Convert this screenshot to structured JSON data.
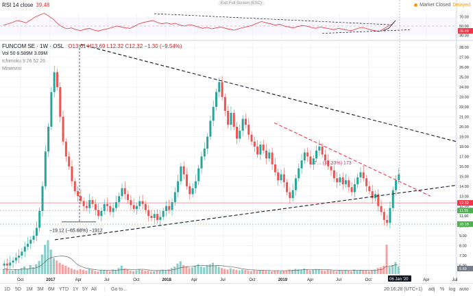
{
  "header": {
    "rsi_label": "RSI 14 close",
    "rsi_value": "39.48",
    "exit_fullscreen": "Exit Full Screen (ESC)",
    "market_status": "Market Closed",
    "delayed": "Delayed"
  },
  "legend": {
    "symbol": "FUNCOM SE · 1W · OSL",
    "ohlc": "O13.61 H13.69 L12.32 C12.32 −1.30 (−9.54%)",
    "vol": "Vol 50  6.589M 3.09M",
    "ichimoku": "Ichimoku 9 26 52 26",
    "minervini": "Minervini"
  },
  "annotations": {
    "drop_label": "−19.12 (−65.68%) −1912",
    "rise_label": "1.7… (32.33%) 173",
    "date_badge": "06 Jan '20"
  },
  "bottombar": {
    "timeframes": [
      "1D",
      "5D",
      "1M",
      "3M",
      "6M",
      "YTD",
      "1Y",
      "5Y",
      "All"
    ],
    "goto": "Go to...",
    "clock": "20:16:28 (UTC+1)",
    "options": [
      "%",
      "log",
      "auto"
    ],
    "adj": "adj"
  },
  "chart_data": [
    {
      "type": "line",
      "title": "RSI 14 close",
      "ylim": [
        20,
        80
      ],
      "x_ticks": [
        "Oct",
        "2017",
        "Apr",
        "Jul",
        "Oct",
        "2018",
        "Apr",
        "Jul",
        "Oct",
        "2019",
        "Apr",
        "Jul",
        "Oct",
        "2020",
        "Apr",
        "Jul"
      ],
      "series": [
        {
          "name": "RSI 14 close",
          "color": "#e53935",
          "values": [
            52,
            55,
            58,
            62,
            60,
            57,
            63,
            70,
            74,
            78,
            72,
            65,
            55,
            48,
            44,
            46,
            42,
            40,
            43,
            45,
            41,
            39,
            42,
            44,
            47,
            50,
            48,
            46,
            45,
            50,
            55,
            58,
            60,
            62,
            58,
            55,
            57,
            54,
            56,
            52,
            50,
            53,
            51,
            48,
            45,
            47,
            44,
            46,
            48,
            45,
            43,
            41,
            44,
            47,
            49,
            52,
            56,
            60,
            57,
            55,
            52,
            54,
            50,
            48,
            46,
            49,
            51,
            50,
            47,
            45,
            48,
            46,
            44,
            42,
            45,
            43,
            41,
            40,
            44,
            47,
            45,
            42,
            40,
            38,
            44,
            50,
            55
          ]
        }
      ],
      "trendlines": [
        "upper falling",
        "lower rising"
      ]
    },
    {
      "type": "candlestick",
      "title": "FUNCOM SE · 1W · OSL",
      "y_ticks": [
        28.0,
        27.0,
        26.0,
        25.0,
        24.0,
        23.0,
        22.0,
        21.0,
        20.0,
        19.0,
        18.0,
        17.0,
        16.0,
        15.0,
        14.0,
        13.0,
        12.0,
        11.0,
        10.0,
        9.0,
        8.0,
        7.0,
        6.0
      ],
      "ylim": [
        5.0,
        28.5
      ],
      "x_ticks": [
        "Oct",
        "2017",
        "Apr",
        "Jul",
        "Oct",
        "2018",
        "Apr",
        "Jul",
        "Oct",
        "2019",
        "Apr",
        "Jul",
        "Oct",
        "2020",
        "Apr",
        "Jul"
      ],
      "close": [
        6.2,
        6.0,
        6.3,
        6.5,
        6.8,
        7.0,
        7.4,
        7.9,
        8.2,
        8.6,
        9.0,
        9.8,
        11.5,
        14.0,
        17.5,
        20.0,
        23.5,
        25.5,
        24.0,
        21.0,
        18.5,
        17.0,
        16.0,
        14.5,
        13.5,
        13.0,
        12.5,
        12.0,
        11.8,
        12.6,
        12.2,
        11.6,
        11.0,
        11.5,
        12.2,
        12.0,
        11.4,
        11.8,
        12.4,
        13.0,
        13.8,
        13.2,
        12.6,
        12.1,
        11.7,
        12.0,
        12.5,
        12.2,
        11.6,
        11.0,
        10.8,
        11.2,
        10.6,
        10.9,
        11.5,
        12.0,
        11.6,
        12.4,
        13.4,
        14.5,
        16.0,
        15.2,
        14.0,
        13.2,
        13.8,
        14.5,
        15.8,
        17.0,
        17.8,
        19.0,
        20.6,
        22.0,
        23.5,
        24.5,
        23.0,
        21.6,
        20.2,
        21.4,
        20.0,
        18.8,
        19.6,
        20.8,
        20.2,
        19.2,
        18.5,
        18.0,
        17.2,
        18.2,
        17.6,
        16.8,
        17.4,
        16.2,
        15.4,
        14.6,
        15.2,
        14.4,
        13.4,
        12.8,
        13.6,
        14.8,
        15.8,
        16.6,
        17.4,
        17.0,
        16.2,
        16.8,
        17.6,
        18.0,
        17.2,
        16.6,
        16.0,
        15.6,
        14.8,
        14.4,
        14.9,
        14.2,
        14.6,
        13.9,
        13.4,
        14.2,
        14.9,
        15.4,
        14.8,
        14.0,
        13.5,
        12.8,
        13.2,
        12.0,
        11.4,
        10.6,
        10.3,
        11.8,
        13.6,
        14.6,
        15.2
      ],
      "annotations": [
        "−19.12 (−65.68%) −1912",
        "1.7… (32.33%) 173"
      ],
      "price_labels": [
        "12.32",
        "11.55",
        "10.18",
        "5.69"
      ],
      "price_label_colors": [
        "#f23645",
        "#4caf50",
        "#4caf50",
        "#787b86"
      ],
      "horizontal_levels": [
        12.32,
        11.55,
        10.18
      ],
      "trendlines": [
        "long falling resistance",
        "short falling resistance (red dashed)",
        "rising support"
      ]
    },
    {
      "type": "bar",
      "title": "Vol 50",
      "ylim": [
        0,
        10
      ],
      "values": [
        1.2,
        1.5,
        1.0,
        0.9,
        1.3,
        1.1,
        1.6,
        2.0,
        1.4,
        2.4,
        1.8,
        2.6,
        3.5,
        5.2,
        7.8,
        9.0,
        6.5,
        4.2,
        3.6,
        3.0,
        2.5,
        2.2,
        1.8,
        1.5,
        1.2,
        1.0,
        1.3,
        1.1,
        0.9,
        1.4,
        1.2,
        0.8,
        0.7,
        1.0,
        1.1,
        0.9,
        0.8,
        1.2,
        1.0,
        1.6,
        2.2,
        1.5,
        1.2,
        0.9,
        0.8,
        1.0,
        1.3,
        1.1,
        0.9,
        1.0,
        0.7,
        0.8,
        0.9,
        1.0,
        1.2,
        1.1,
        1.3,
        1.6,
        2.0,
        2.8,
        3.4,
        2.4,
        2.0,
        1.6,
        1.8,
        2.2,
        2.6,
        2.0,
        1.8,
        2.4,
        2.6,
        3.0,
        2.2,
        1.9,
        1.6,
        1.4,
        1.2,
        1.5,
        1.3,
        1.1,
        1.0,
        1.2,
        1.1,
        0.9,
        0.8,
        1.0,
        0.9,
        1.1,
        1.0,
        0.9,
        0.8,
        0.7,
        0.9,
        1.0,
        0.8,
        0.9,
        1.0,
        1.2,
        1.1,
        1.4,
        1.3,
        1.2,
        1.5,
        1.2,
        1.0,
        1.1,
        1.3,
        1.2,
        1.0,
        0.9,
        1.1,
        1.0,
        0.9,
        0.8,
        1.0,
        0.9,
        1.1,
        1.0,
        0.8,
        1.2,
        1.0,
        1.1,
        1.0,
        0.9,
        0.8,
        1.0,
        1.2,
        1.6,
        1.8,
        2.2,
        7.8,
        1.9,
        2.4,
        3.2,
        2.0
      ]
    }
  ]
}
